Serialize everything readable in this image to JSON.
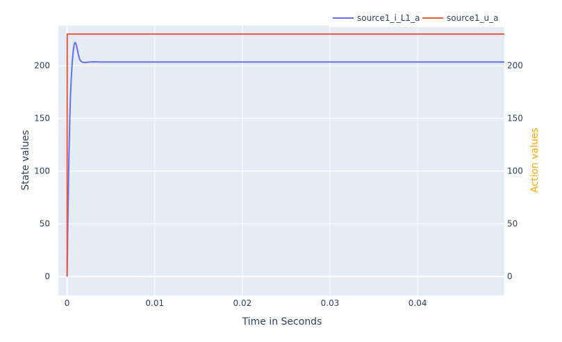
{
  "chart_data": {
    "type": "line",
    "title": "",
    "xlabel": "Time in Seconds",
    "ylabel": "State values",
    "y2label": "Action values",
    "xlim": [
      -0.001,
      0.0499
    ],
    "ylim": [
      -18,
      238
    ],
    "y2lim": [
      -18,
      238
    ],
    "x_ticks": [
      0,
      0.01,
      0.02,
      0.03,
      0.04
    ],
    "x_tick_labels": [
      "0",
      "0.01",
      "0.02",
      "0.03",
      "0.04"
    ],
    "y_ticks": [
      0,
      50,
      100,
      150,
      200
    ],
    "y_tick_labels": [
      "0",
      "50",
      "100",
      "150",
      "200"
    ],
    "y2_ticks": [
      0,
      50,
      100,
      150,
      200
    ],
    "y2_tick_labels": [
      "0",
      "50",
      "100",
      "150",
      "200"
    ],
    "grid": true,
    "legend_position": "top-right",
    "series": [
      {
        "name": "source1_i_L1_a",
        "axis": "y",
        "color": "#636efa",
        "x": [
          0,
          0.0001,
          0.0002,
          0.0003,
          0.0004,
          0.0005,
          0.0006,
          0.0007,
          0.0008,
          0.0009,
          0.001,
          0.0011,
          0.0012,
          0.0013,
          0.0014,
          0.0015,
          0.0016,
          0.0017,
          0.0018,
          0.002,
          0.0023,
          0.0027,
          0.003,
          0.0035,
          0.004,
          0.005,
          0.01,
          0.02,
          0.03,
          0.04,
          0.0499
        ],
        "y": [
          0,
          60,
          110,
          148,
          175,
          192,
          205,
          214,
          220,
          222,
          221,
          218,
          214,
          210,
          207,
          205,
          204,
          203.5,
          203.2,
          203,
          203.3,
          203.6,
          203.7,
          203.6,
          203.5,
          203.5,
          203.5,
          203.5,
          203.5,
          203.5,
          203.5
        ]
      },
      {
        "name": "source1_u_a",
        "axis": "y2",
        "color": "#ef553b",
        "x": [
          0,
          1e-05,
          0.0499
        ],
        "y": [
          0,
          230,
          230
        ]
      }
    ]
  },
  "colors": {
    "plot_bg": "#e5ecf6",
    "grid": "#ffffff",
    "text": "#2a3f5f",
    "y2_title": "#ffa500"
  }
}
